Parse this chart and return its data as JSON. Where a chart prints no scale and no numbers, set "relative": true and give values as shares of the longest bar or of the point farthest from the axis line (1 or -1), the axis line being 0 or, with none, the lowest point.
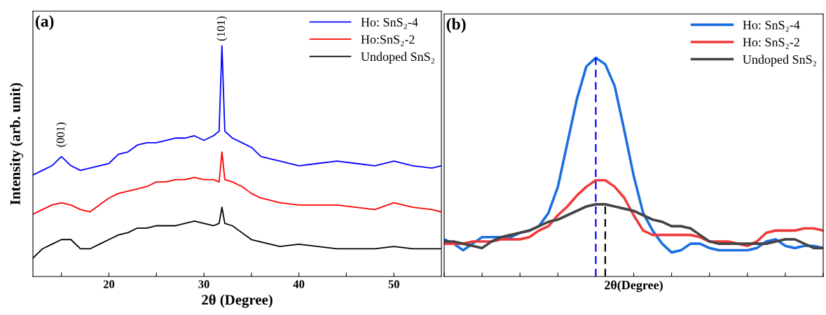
{
  "chart_data": [
    {
      "type": "line",
      "xlabel": "2θ (Degree)",
      "ylabel": "Intensity (arb. unit)",
      "relative": true,
      "legend": "top right",
      "grid": false,
      "xlim": [
        12,
        55
      ],
      "xticks": [
        {
          "value": 15,
          "label": null
        },
        20,
        {
          "value": 25,
          "label": null
        },
        30,
        {
          "value": 35,
          "label": null
        },
        40,
        {
          "value": 45,
          "label": null
        },
        50
      ],
      "tick_labels": "x",
      "x": [
        12,
        13,
        14,
        15,
        16,
        17,
        18,
        19,
        20,
        21,
        22,
        23,
        24,
        25,
        26,
        27,
        28,
        29,
        30,
        31,
        31.6,
        31.9,
        32.2,
        33,
        34,
        35,
        36,
        37,
        38,
        40,
        42,
        44,
        46,
        48,
        50,
        52,
        54,
        55
      ],
      "annotations": [
        "(a)",
        "(001)",
        "(101)"
      ],
      "series": [
        {
          "name": "Ho: SnS₂-4",
          "color": "#0000ff",
          "values": [
            0.44,
            0.46,
            0.48,
            0.52,
            0.48,
            0.46,
            0.47,
            0.48,
            0.49,
            0.53,
            0.54,
            0.57,
            0.58,
            0.58,
            0.59,
            0.6,
            0.6,
            0.61,
            0.59,
            0.61,
            0.63,
            1.0,
            0.63,
            0.6,
            0.58,
            0.56,
            0.52,
            0.51,
            0.5,
            0.48,
            0.49,
            0.5,
            0.49,
            0.48,
            0.5,
            0.48,
            0.47,
            0.48
          ]
        },
        {
          "name": "Ho:SnS₂-2",
          "color": "#ff0000",
          "values": [
            0.27,
            0.29,
            0.31,
            0.32,
            0.31,
            0.29,
            0.28,
            0.31,
            0.34,
            0.36,
            0.37,
            0.38,
            0.39,
            0.41,
            0.41,
            0.42,
            0.42,
            0.43,
            0.42,
            0.42,
            0.41,
            0.54,
            0.42,
            0.41,
            0.39,
            0.36,
            0.34,
            0.33,
            0.32,
            0.31,
            0.31,
            0.31,
            0.3,
            0.29,
            0.32,
            0.3,
            0.29,
            0.28
          ]
        },
        {
          "name": "Undoped SnS₂",
          "color": "#000000",
          "values": [
            0.08,
            0.12,
            0.14,
            0.16,
            0.16,
            0.12,
            0.12,
            0.14,
            0.16,
            0.18,
            0.19,
            0.21,
            0.21,
            0.22,
            0.22,
            0.22,
            0.23,
            0.24,
            0.23,
            0.22,
            0.23,
            0.3,
            0.23,
            0.22,
            0.19,
            0.16,
            0.15,
            0.14,
            0.13,
            0.14,
            0.13,
            0.12,
            0.12,
            0.12,
            0.13,
            0.12,
            0.12,
            0.12
          ]
        }
      ]
    },
    {
      "type": "line",
      "xlabel": "2θ(Degree)",
      "relative": true,
      "legend": "top right",
      "grid": false,
      "tick_labels": false,
      "categories": [
        null,
        null,
        null,
        null,
        null,
        null,
        null,
        null,
        null,
        null,
        null,
        null,
        null,
        null,
        null,
        null,
        null,
        null,
        null,
        null,
        null,
        null,
        null,
        null,
        null,
        null,
        null,
        null,
        null,
        null,
        null,
        null,
        null,
        null,
        null,
        null,
        null,
        null,
        null,
        null,
        null
      ],
      "annotations": [
        "(b)"
      ],
      "series": [
        {
          "name": "Ho: SnS₂-4",
          "color": "#1a6fdf",
          "values": [
            0.17,
            0.15,
            0.12,
            0.15,
            0.18,
            0.18,
            0.18,
            0.18,
            0.2,
            0.21,
            0.23,
            0.29,
            0.41,
            0.61,
            0.81,
            0.96,
            1.0,
            0.97,
            0.87,
            0.67,
            0.46,
            0.29,
            0.21,
            0.15,
            0.11,
            0.12,
            0.15,
            0.15,
            0.13,
            0.12,
            0.12,
            0.12,
            0.12,
            0.13,
            0.16,
            0.17,
            0.14,
            0.13,
            0.14,
            0.14,
            0.13
          ]
        },
        {
          "name": "Ho: SnS₂-2",
          "color": "#f0393c",
          "values": [
            0.15,
            0.15,
            0.15,
            0.16,
            0.16,
            0.16,
            0.17,
            0.17,
            0.17,
            0.18,
            0.21,
            0.23,
            0.28,
            0.32,
            0.37,
            0.41,
            0.44,
            0.44,
            0.41,
            0.36,
            0.28,
            0.21,
            0.19,
            0.19,
            0.19,
            0.19,
            0.19,
            0.18,
            0.16,
            0.16,
            0.16,
            0.15,
            0.14,
            0.16,
            0.2,
            0.21,
            0.21,
            0.21,
            0.22,
            0.22,
            0.21
          ]
        },
        {
          "name": "Undoped SnS₂",
          "color": "#444444",
          "values": [
            0.16,
            0.16,
            0.15,
            0.14,
            0.13,
            0.16,
            0.18,
            0.19,
            0.2,
            0.21,
            0.23,
            0.25,
            0.26,
            0.28,
            0.3,
            0.32,
            0.33,
            0.33,
            0.32,
            0.31,
            0.3,
            0.28,
            0.26,
            0.25,
            0.23,
            0.23,
            0.22,
            0.19,
            0.16,
            0.15,
            0.15,
            0.15,
            0.15,
            0.15,
            0.15,
            0.16,
            0.17,
            0.17,
            0.15,
            0.13,
            0.13
          ]
        }
      ]
    }
  ]
}
